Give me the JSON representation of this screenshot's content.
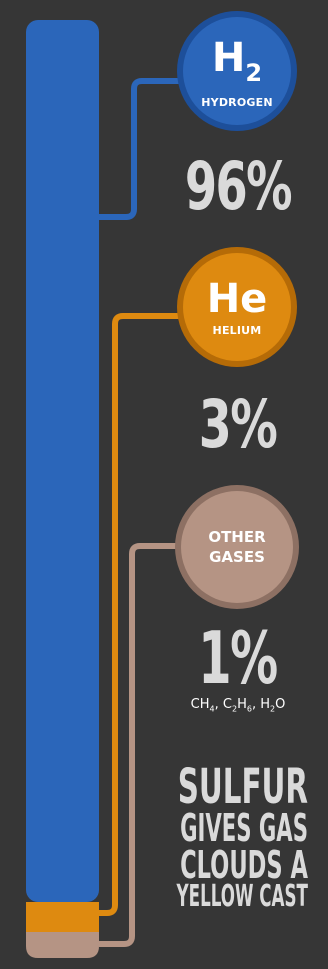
{
  "colors": {
    "background": "#363636",
    "hydrogen": "#2b66ba",
    "hydrogen_ring": "#1d4f9a",
    "helium": "#de8a10",
    "helium_ring": "#b56b07",
    "other": "#b59484",
    "other_ring": "#8d7063",
    "text_light": "#dadada"
  },
  "hydrogen": {
    "symbol": "H",
    "subscript": "2",
    "name": "HYDROGEN",
    "percent": "96%"
  },
  "helium": {
    "symbol": "He",
    "name": "HELIUM",
    "percent": "3%"
  },
  "other": {
    "name_line1": "OTHER",
    "name_line2": "GASES",
    "percent": "1%",
    "formula": {
      "ch": "CH",
      "ch_sub": "4",
      "c": "C",
      "c_sub": "2",
      "h": "H",
      "h_sub": "6",
      "h2o_h": "H",
      "h2o_sub": "2",
      "h2o_o": "O"
    }
  },
  "fact": {
    "line1": "SULFUR",
    "line2": "GIVES GAS",
    "line3": "CLOUDS A",
    "line4": "YELLOW CAST"
  },
  "composition": {
    "hydrogen": 96,
    "helium": 3,
    "other": 1
  }
}
